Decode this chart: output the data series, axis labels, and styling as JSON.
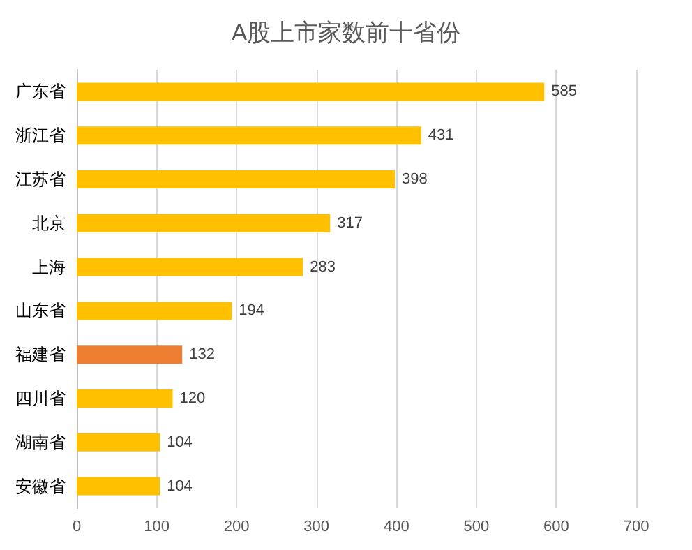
{
  "chart_data": {
    "type": "bar",
    "orientation": "horizontal",
    "title": "A股上市家数前十省份",
    "categories": [
      "广东省",
      "浙江省",
      "江苏省",
      "北京",
      "上海",
      "山东省",
      "福建省",
      "四川省",
      "湖南省",
      "安徽省"
    ],
    "values": [
      585,
      431,
      398,
      317,
      283,
      194,
      132,
      120,
      104,
      104
    ],
    "colors": [
      "#ffc000",
      "#ffc000",
      "#ffc000",
      "#ffc000",
      "#ffc000",
      "#ffc000",
      "#ed7d31",
      "#ffc000",
      "#ffc000",
      "#ffc000"
    ],
    "xlim": [
      0,
      700
    ],
    "xticks": [
      0,
      100,
      200,
      300,
      400,
      500,
      600,
      700
    ],
    "grid": "x",
    "data_labels": true
  }
}
